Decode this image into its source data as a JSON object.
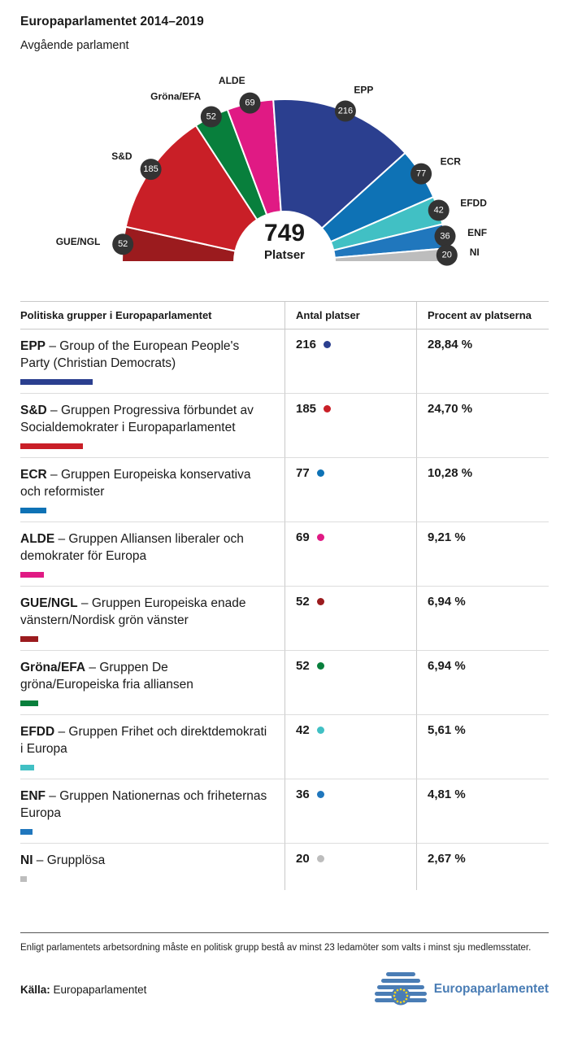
{
  "page": {
    "title": "Europaparlamentet 2014–2019",
    "subtitle": "Avgående parlament"
  },
  "chart_data": {
    "type": "hemicycle",
    "total_seats": 749,
    "center_value": "749",
    "center_label": "Platser",
    "badge_color": "#333333",
    "hemicycle_order": [
      "GUE/NGL",
      "S&D",
      "Gröna/EFA",
      "ALDE",
      "EPP",
      "ECR",
      "EFDD",
      "ENF",
      "NI"
    ],
    "groups": [
      {
        "abbr": "EPP",
        "name_rest": "Group of the European People's Party (Christian Democrats)",
        "seats": 216,
        "percent": 28.84,
        "percent_label": "28,84 %",
        "color": "#2b3f8f"
      },
      {
        "abbr": "S&D",
        "name_rest": "Gruppen Progressiva förbundet av Socialdemokrater i Europaparlamentet",
        "seats": 185,
        "percent": 24.7,
        "percent_label": "24,70 %",
        "color": "#c91f27"
      },
      {
        "abbr": "ECR",
        "name_rest": "Gruppen Europeiska konservativa och reformister",
        "seats": 77,
        "percent": 10.28,
        "percent_label": "10,28 %",
        "color": "#0e72b5"
      },
      {
        "abbr": "ALDE",
        "name_rest": "Gruppen Alliansen liberaler och demokrater för Europa",
        "seats": 69,
        "percent": 9.21,
        "percent_label": "9,21 %",
        "color": "#e01a84"
      },
      {
        "abbr": "GUE/NGL",
        "name_rest": "Gruppen Europeiska enade vänstern/Nordisk grön vänster",
        "seats": 52,
        "percent": 6.94,
        "percent_label": "6,94 %",
        "color": "#9b1b1e"
      },
      {
        "abbr": "Gröna/EFA",
        "name_rest": "Gruppen De gröna/Europeiska fria alliansen",
        "seats": 52,
        "percent": 6.94,
        "percent_label": "6,94 %",
        "color": "#087f3c"
      },
      {
        "abbr": "EFDD",
        "name_rest": "Gruppen Frihet och direktdemokrati i Europa",
        "seats": 42,
        "percent": 5.61,
        "percent_label": "5,61 %",
        "color": "#41c0c4"
      },
      {
        "abbr": "ENF",
        "name_rest": "Gruppen Nationernas och friheternas Europa",
        "seats": 36,
        "percent": 4.81,
        "percent_label": "4,81 %",
        "color": "#2077bd"
      },
      {
        "abbr": "NI",
        "name_rest": "Grupplösa",
        "seats": 20,
        "percent": 2.67,
        "percent_label": "2,67 %",
        "color": "#bdbdbd"
      }
    ]
  },
  "table": {
    "headers": [
      "Politiska grupper i Europaparlamentet",
      "Antal platser",
      "Procent av platserna"
    ],
    "name_separator": " – "
  },
  "footer": {
    "note": "Enligt parlamentets arbetsordning måste en politisk grupp bestå av minst 23 ledamöter som valts i minst sju medlemsstater.",
    "source_label": "Källa:",
    "source_value": " Europaparlamentet",
    "logo_text": "Europaparlamentet",
    "logo_color": "#4a7db5",
    "logo_star_color": "#ffd617"
  }
}
